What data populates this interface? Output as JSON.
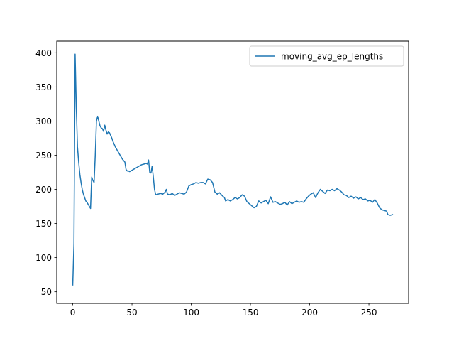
{
  "chart_data": {
    "type": "line",
    "title": "",
    "xlabel": "",
    "ylabel": "",
    "xlim": [
      -13.5,
      283.5
    ],
    "ylim": [
      33,
      417
    ],
    "xticks": [
      0,
      50,
      100,
      150,
      200,
      250
    ],
    "yticks": [
      50,
      100,
      150,
      200,
      250,
      300,
      350,
      400
    ],
    "grid": false,
    "legend_position": "top-right",
    "series": [
      {
        "name": "moving_avg_ep_lengths",
        "color": "#1f77b4",
        "points": [
          [
            0,
            60
          ],
          [
            1,
            120
          ],
          [
            2,
            398
          ],
          [
            3,
            320
          ],
          [
            4,
            262
          ],
          [
            5,
            240
          ],
          [
            6,
            222
          ],
          [
            7,
            210
          ],
          [
            8,
            200
          ],
          [
            9,
            193
          ],
          [
            10,
            188
          ],
          [
            11,
            183
          ],
          [
            12,
            181
          ],
          [
            13,
            178
          ],
          [
            14,
            175
          ],
          [
            15,
            172
          ],
          [
            16,
            218
          ],
          [
            17,
            213
          ],
          [
            18,
            210
          ],
          [
            19,
            250
          ],
          [
            20,
            300
          ],
          [
            21,
            307
          ],
          [
            22,
            300
          ],
          [
            23,
            293
          ],
          [
            24,
            290
          ],
          [
            25,
            289
          ],
          [
            26,
            285
          ],
          [
            27,
            294
          ],
          [
            28,
            287
          ],
          [
            29,
            281
          ],
          [
            30,
            284
          ],
          [
            31,
            283
          ],
          [
            32,
            279
          ],
          [
            33,
            275
          ],
          [
            34,
            270
          ],
          [
            35,
            266
          ],
          [
            36,
            262
          ],
          [
            37,
            259
          ],
          [
            38,
            256
          ],
          [
            39,
            253
          ],
          [
            40,
            250
          ],
          [
            41,
            247
          ],
          [
            42,
            244
          ],
          [
            43,
            242
          ],
          [
            44,
            240
          ],
          [
            45,
            229
          ],
          [
            46,
            227
          ],
          [
            47,
            227
          ],
          [
            48,
            226
          ],
          [
            49,
            227
          ],
          [
            50,
            228
          ],
          [
            52,
            230
          ],
          [
            54,
            232
          ],
          [
            56,
            234
          ],
          [
            58,
            236
          ],
          [
            60,
            237
          ],
          [
            62,
            238
          ],
          [
            63,
            237
          ],
          [
            64,
            243
          ],
          [
            65,
            225
          ],
          [
            66,
            224
          ],
          [
            67,
            234
          ],
          [
            68,
            218
          ],
          [
            69,
            200
          ],
          [
            70,
            192
          ],
          [
            72,
            193
          ],
          [
            74,
            194
          ],
          [
            76,
            193
          ],
          [
            78,
            196
          ],
          [
            79,
            200
          ],
          [
            80,
            193
          ],
          [
            82,
            192
          ],
          [
            84,
            194
          ],
          [
            86,
            191
          ],
          [
            88,
            193
          ],
          [
            90,
            195
          ],
          [
            92,
            194
          ],
          [
            94,
            193
          ],
          [
            96,
            196
          ],
          [
            98,
            205
          ],
          [
            100,
            207
          ],
          [
            102,
            208
          ],
          [
            104,
            210
          ],
          [
            106,
            209
          ],
          [
            108,
            210
          ],
          [
            110,
            210
          ],
          [
            112,
            208
          ],
          [
            114,
            215
          ],
          [
            116,
            214
          ],
          [
            118,
            210
          ],
          [
            120,
            196
          ],
          [
            122,
            193
          ],
          [
            124,
            195
          ],
          [
            126,
            191
          ],
          [
            128,
            188
          ],
          [
            129,
            183
          ],
          [
            131,
            185
          ],
          [
            133,
            183
          ],
          [
            135,
            185
          ],
          [
            137,
            188
          ],
          [
            139,
            186
          ],
          [
            141,
            188
          ],
          [
            143,
            192
          ],
          [
            145,
            190
          ],
          [
            147,
            182
          ],
          [
            149,
            179
          ],
          [
            151,
            176
          ],
          [
            153,
            173
          ],
          [
            155,
            175
          ],
          [
            157,
            183
          ],
          [
            159,
            180
          ],
          [
            161,
            182
          ],
          [
            163,
            184
          ],
          [
            165,
            179
          ],
          [
            167,
            189
          ],
          [
            169,
            181
          ],
          [
            171,
            182
          ],
          [
            173,
            180
          ],
          [
            175,
            178
          ],
          [
            177,
            179
          ],
          [
            179,
            181
          ],
          [
            181,
            177
          ],
          [
            183,
            182
          ],
          [
            185,
            179
          ],
          [
            187,
            181
          ],
          [
            189,
            183
          ],
          [
            191,
            181
          ],
          [
            193,
            182
          ],
          [
            195,
            181
          ],
          [
            197,
            186
          ],
          [
            199,
            190
          ],
          [
            201,
            193
          ],
          [
            203,
            195
          ],
          [
            205,
            188
          ],
          [
            207,
            195
          ],
          [
            209,
            200
          ],
          [
            211,
            197
          ],
          [
            213,
            194
          ],
          [
            215,
            199
          ],
          [
            217,
            198
          ],
          [
            219,
            200
          ],
          [
            221,
            198
          ],
          [
            223,
            201
          ],
          [
            225,
            199
          ],
          [
            227,
            196
          ],
          [
            229,
            192
          ],
          [
            231,
            191
          ],
          [
            233,
            188
          ],
          [
            235,
            190
          ],
          [
            237,
            187
          ],
          [
            239,
            189
          ],
          [
            241,
            186
          ],
          [
            243,
            188
          ],
          [
            245,
            185
          ],
          [
            247,
            186
          ],
          [
            249,
            183
          ],
          [
            251,
            184
          ],
          [
            253,
            181
          ],
          [
            255,
            185
          ],
          [
            257,
            180
          ],
          [
            259,
            173
          ],
          [
            261,
            170
          ],
          [
            263,
            169
          ],
          [
            265,
            168
          ],
          [
            266,
            163
          ],
          [
            268,
            162
          ],
          [
            270,
            163
          ]
        ]
      }
    ]
  }
}
